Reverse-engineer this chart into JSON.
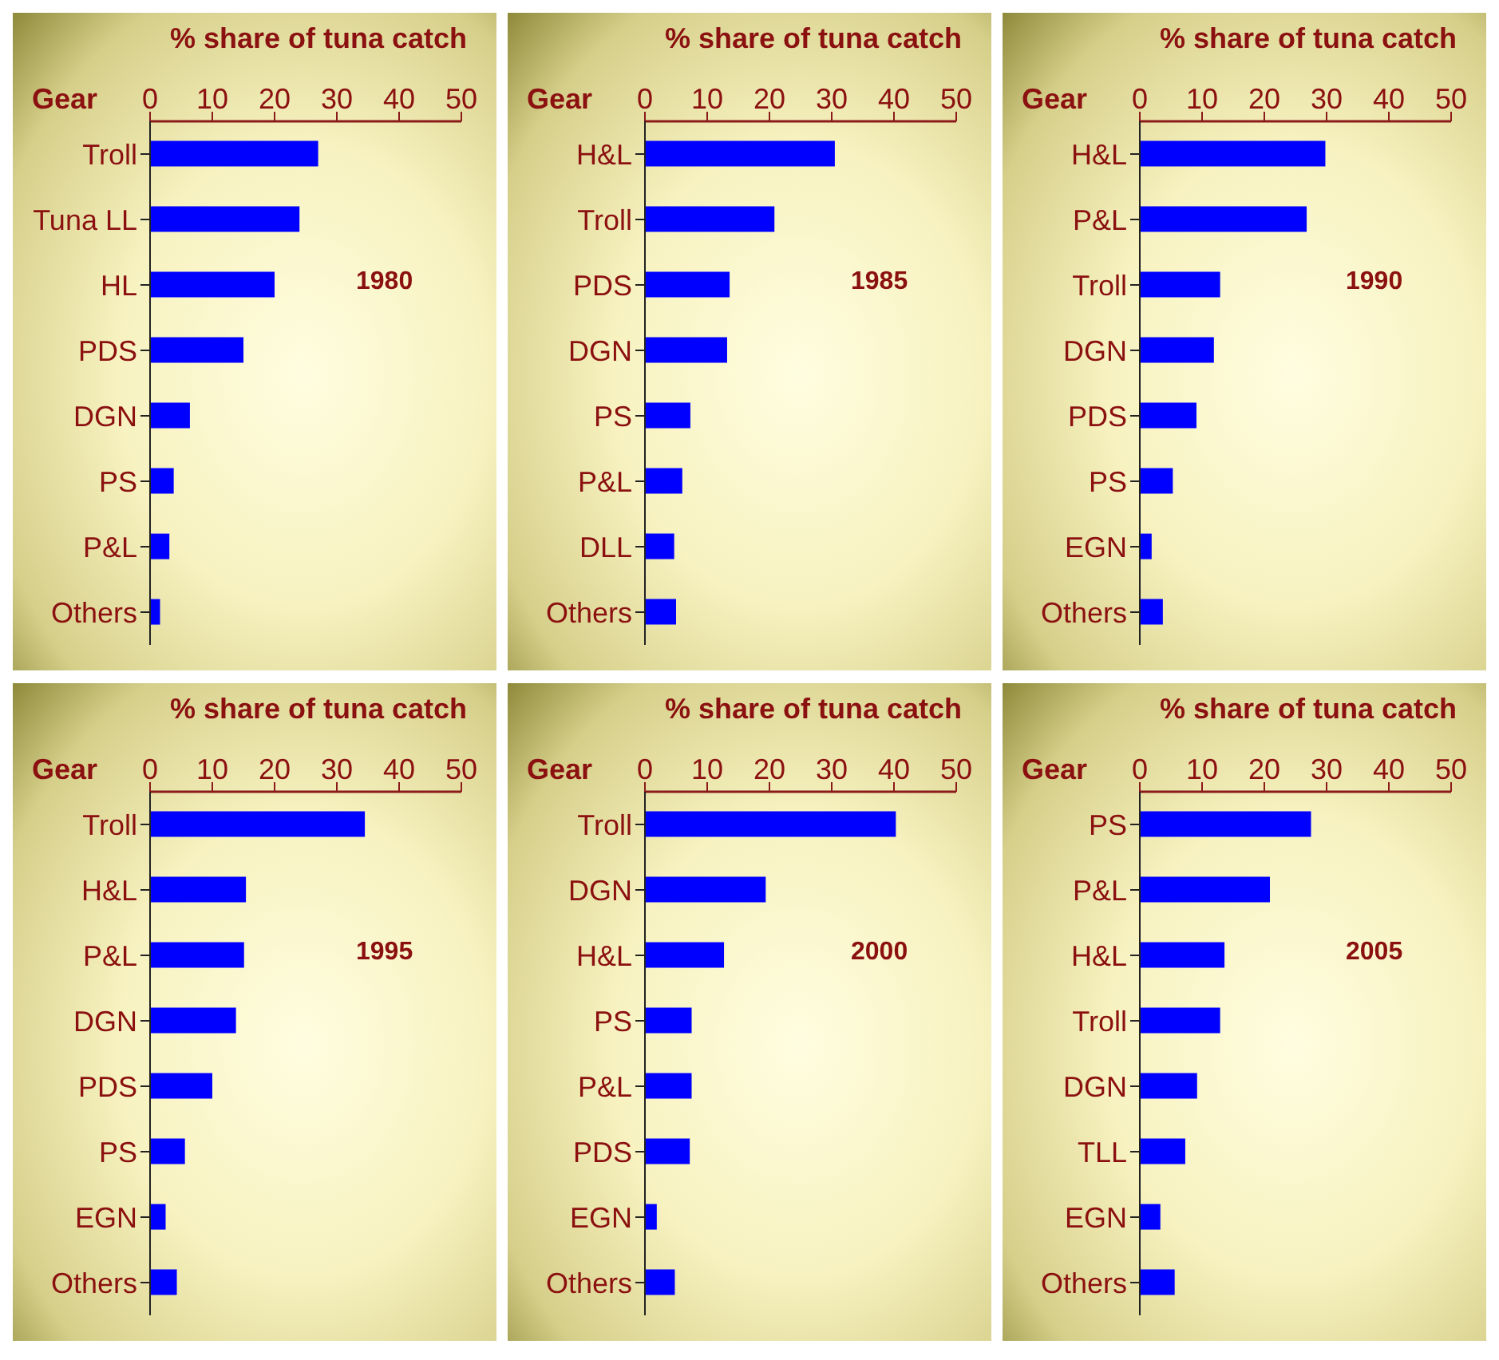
{
  "chart_data": [
    {
      "type": "bar",
      "orientation": "horizontal",
      "xlabel": "% share of tuna catch",
      "ylabel": "Gear",
      "annotations": [
        "1980"
      ],
      "categories": [
        "Troll",
        "Tuna LL",
        "HL",
        "PDS",
        "DGN",
        "PS",
        "P&L",
        "Others"
      ],
      "values": [
        27,
        24,
        20,
        15,
        6.4,
        3.8,
        3.1,
        1.6
      ],
      "color": "#0000ff",
      "xlim": [
        0,
        50
      ],
      "xticks": [
        0,
        10,
        20,
        30,
        40,
        50
      ]
    },
    {
      "type": "bar",
      "orientation": "horizontal",
      "xlabel": "% share of tuna catch",
      "ylabel": "Gear",
      "annotations": [
        "1985"
      ],
      "categories": [
        "H&L",
        "Troll",
        "PDS",
        "DGN",
        "PS",
        "P&L",
        "DLL",
        "Others"
      ],
      "values": [
        30.5,
        20.8,
        13.6,
        13.2,
        7.3,
        6,
        4.7,
        5
      ],
      "color": "#0000ff",
      "xlim": [
        0,
        50
      ],
      "xticks": [
        0,
        10,
        20,
        30,
        40,
        50
      ]
    },
    {
      "type": "bar",
      "orientation": "horizontal",
      "xlabel": "% share of tuna catch",
      "ylabel": "Gear",
      "annotations": [
        "1990"
      ],
      "categories": [
        "H&L",
        "P&L",
        "Troll",
        "DGN",
        "PDS",
        "PS",
        "EGN",
        "Others"
      ],
      "values": [
        29.8,
        26.8,
        12.9,
        11.9,
        9.1,
        5.3,
        1.9,
        3.7
      ],
      "color": "#0000ff",
      "xlim": [
        0,
        50
      ],
      "xticks": [
        0,
        10,
        20,
        30,
        40,
        50
      ]
    },
    {
      "type": "bar",
      "orientation": "horizontal",
      "xlabel": "% share of tuna catch",
      "ylabel": "Gear",
      "annotations": [
        "1995"
      ],
      "categories": [
        "Troll",
        "H&L",
        "P&L",
        "DGN",
        "PDS",
        "PS",
        "EGN",
        "Others"
      ],
      "values": [
        34.5,
        15.4,
        15.1,
        13.8,
        10,
        5.6,
        2.5,
        4.3
      ],
      "color": "#0000ff",
      "xlim": [
        0,
        50
      ],
      "xticks": [
        0,
        10,
        20,
        30,
        40,
        50
      ]
    },
    {
      "type": "bar",
      "orientation": "horizontal",
      "xlabel": "% share of tuna catch",
      "ylabel": "Gear",
      "annotations": [
        "2000"
      ],
      "categories": [
        "Troll",
        "DGN",
        "H&L",
        "PS",
        "P&L",
        "PDS",
        "EGN",
        "Others"
      ],
      "values": [
        40.3,
        19.4,
        12.7,
        7.5,
        7.5,
        7.2,
        1.9,
        4.8
      ],
      "color": "#0000ff",
      "xlim": [
        0,
        50
      ],
      "xticks": [
        0,
        10,
        20,
        30,
        40,
        50
      ]
    },
    {
      "type": "bar",
      "orientation": "horizontal",
      "xlabel": "% share of tuna catch",
      "ylabel": "Gear",
      "annotations": [
        "2005"
      ],
      "categories": [
        "PS",
        "P&L",
        "H&L",
        "Troll",
        "DGN",
        "TLL",
        "EGN",
        "Others"
      ],
      "values": [
        27.5,
        20.9,
        13.6,
        12.9,
        9.2,
        7.3,
        3.3,
        5.6
      ],
      "color": "#0000ff",
      "xlim": [
        0,
        50
      ],
      "xticks": [
        0,
        10,
        20,
        30,
        40,
        50
      ]
    }
  ]
}
